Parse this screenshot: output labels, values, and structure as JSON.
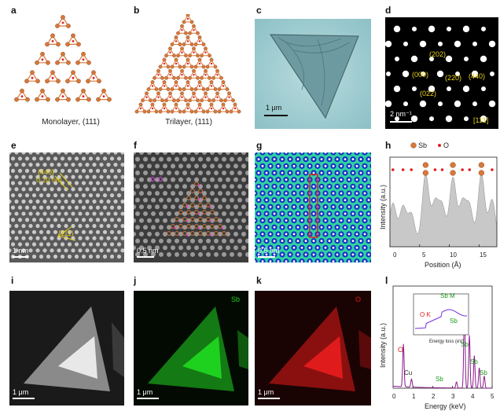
{
  "panels": {
    "a": {
      "label": "a",
      "caption": "Monolayer, (111)"
    },
    "b": {
      "label": "b",
      "caption": "Trilayer, (111)"
    },
    "c": {
      "label": "c",
      "scale": "1 μm"
    },
    "d": {
      "label": "d",
      "scale": "2 nm⁻¹",
      "spots": [
        "(202)",
        "(000)",
        "(220)",
        "(440)",
        "(022)"
      ],
      "zone": "[11̄1]"
    },
    "e": {
      "label": "e",
      "scale": "1 nm",
      "ann1": "{440}",
      "ann2": "0.20 nm",
      "ann3": "{111}"
    },
    "f": {
      "label": "f",
      "scale": "0.5 nm"
    },
    "g": {
      "label": "g",
      "scale": "0.5 nm"
    },
    "h": {
      "label": "h",
      "legend_sb": "Sb",
      "legend_o": "O",
      "ylabel": "Intensity (a.u.)",
      "xlabel": "Position (Å)",
      "xticks": [
        "0",
        "5",
        "10",
        "15"
      ]
    },
    "i": {
      "label": "i",
      "scale": "1 μm"
    },
    "j": {
      "label": "j",
      "scale": "1 μm",
      "element": "Sb"
    },
    "k": {
      "label": "k",
      "scale": "1 μm",
      "element": "O"
    },
    "l": {
      "label": "l",
      "ylabel": "Intensity (a.u.)",
      "xlabel": "Energy (keV)",
      "xticks": [
        "0",
        "1",
        "2",
        "3",
        "4",
        "5"
      ],
      "peaks": [
        "O",
        "Cu",
        "Sb",
        "Sb",
        "Sb",
        "Sb",
        "Sb"
      ],
      "inset_ylabel": "Intensity (a.u.)",
      "inset_xlabel": "Energy loss (eV)",
      "inset_xticks": [
        "500",
        "550",
        "600",
        "650",
        "700"
      ],
      "inset_o": "O K",
      "inset_sb": "Sb M"
    }
  },
  "colors": {
    "sb_orange": "#d8783a",
    "o_red": "#e02020",
    "green_map": "#1fd11f",
    "red_map": "#e01b1b",
    "purple": "#8b1a8b",
    "yellow_text": "#e8d21d"
  },
  "chart_data": {
    "type": "line",
    "xlabel": "Position (Å)",
    "ylabel": "Intensity (a.u.)",
    "xlim": [
      0,
      18
    ],
    "x": [
      0.5,
      2.2,
      3.6,
      6.0,
      7.6,
      8.8,
      10.6,
      12.2,
      13.4,
      15.4,
      17.2
    ],
    "values": [
      0.55,
      0.5,
      0.4,
      0.95,
      0.55,
      0.5,
      0.9,
      0.55,
      0.5,
      0.95,
      0.6
    ]
  }
}
